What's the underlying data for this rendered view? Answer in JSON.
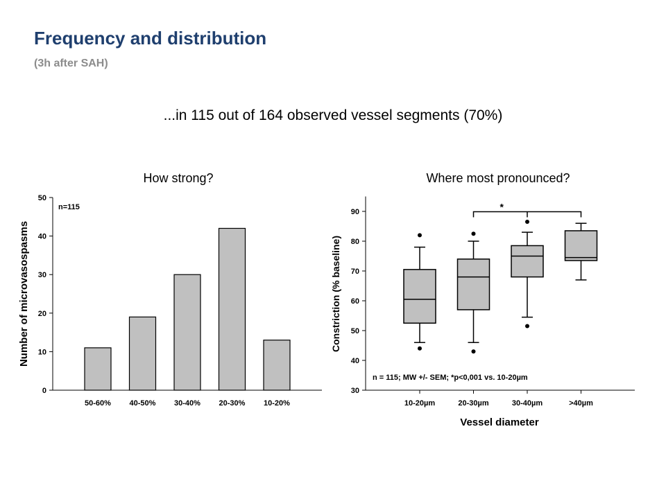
{
  "slide": {
    "title": "Frequency and distribution",
    "subtitle": "(3h after SAH)",
    "headline": "...in 115 out of 164 observed vessel segments (70%)"
  },
  "chart_data": [
    {
      "type": "bar",
      "title": "How strong?",
      "ylabel": "Number of microvasospasms",
      "xlabel": "",
      "annotation": "n=115",
      "categories": [
        "50-60%",
        "40-50%",
        "30-40%",
        "20-30%",
        "10-20%"
      ],
      "values": [
        11,
        19,
        30,
        42,
        13
      ],
      "ylim": [
        0,
        50
      ],
      "yticks": [
        0,
        10,
        20,
        30,
        40,
        50
      ],
      "bar_color": "#c0c0c0",
      "grid": false
    },
    {
      "type": "boxplot",
      "title": "Where most pronounced?",
      "ylabel": "Constriction (% baseline)",
      "xlabel": "Vessel diameter",
      "annotation": "n = 115; MW +/- SEM; *p<0,001 vs. 10-20µm",
      "significance_label": "*",
      "categories": [
        "10-20µm",
        "20-30µm",
        "30-40µm",
        ">40µm"
      ],
      "boxes": [
        {
          "whisker_low": 46,
          "q1": 52.5,
          "median": 60.5,
          "q3": 70.5,
          "whisker_high": 78,
          "outliers": [
            44,
            82
          ]
        },
        {
          "whisker_low": 46,
          "q1": 57,
          "median": 68,
          "q3": 74,
          "whisker_high": 80,
          "outliers": [
            43,
            82.5
          ]
        },
        {
          "whisker_low": 54.5,
          "q1": 68,
          "median": 75,
          "q3": 78.5,
          "whisker_high": 83,
          "outliers": [
            51.5,
            86.5
          ]
        },
        {
          "whisker_low": 67,
          "q1": 73.5,
          "median": 74.5,
          "q3": 83.5,
          "whisker_high": 86,
          "outliers": []
        }
      ],
      "ylim": [
        30,
        95
      ],
      "yticks": [
        30,
        40,
        50,
        60,
        70,
        80,
        90
      ],
      "box_color": "#c0c0c0",
      "grid": false
    }
  ]
}
